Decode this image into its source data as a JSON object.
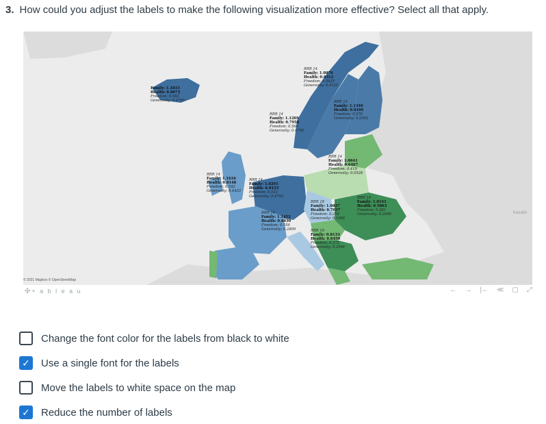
{
  "question": {
    "number": "3.",
    "text": "How could you adjust the labels to make the following visualization more effective? Select all that apply."
  },
  "map": {
    "attribution": "© 2021 Mapbox © OpenStreetMap",
    "logo": "+ a b l e a u",
    "corner_label": "Kazakh",
    "colors": {
      "dark_blue": "#3e6f9e",
      "mid_blue": "#6a9dc9",
      "light_blue": "#a9c9e2",
      "dark_green": "#3e8e57",
      "mid_green": "#73b873",
      "light_green": "#b9dcb0",
      "background": "#ececec"
    },
    "toolbar_icons": [
      "undo-icon",
      "redo-icon",
      "revert-icon",
      "share-icon",
      "comment-icon",
      "fullscreen-icon"
    ],
    "toolbar_glyphs": [
      "←",
      "→",
      "|←",
      "≪",
      "▢",
      "⤢"
    ],
    "labels": [
      {
        "id": "iceland",
        "l0": "",
        "l1": "Family: 1.1833",
        "l2": "Health: 0.8673",
        "l3": "Freedom: 0.562",
        "l4": "Generosity: 0.4765"
      },
      {
        "id": "norway",
        "l0": "RRR 14",
        "l1": "Family: 1.0876",
        "l2": "Health: 0.8312",
        "l3": "Freedom: 0.5625",
        "l4": "Generosity: 0.4125"
      },
      {
        "id": "sweden",
        "l0": "RRR 14",
        "l1": "Family: 1.1269",
        "l2": "Health: 0.7958",
        "l3": "Freedom: 0.566",
        "l4": "Generosity: 0.4750"
      },
      {
        "id": "finland",
        "l0": "RRR 14",
        "l1": "Family: 1.1346",
        "l2": "Health: 0.8109",
        "l3": "Freedom: 0.570",
        "l4": "Generosity: 0.2543"
      },
      {
        "id": "baltic",
        "l0": "RRR 14",
        "l1": "Family: 1.0641",
        "l2": "Health: 0.6467",
        "l3": "Freedom: 0.419",
        "l4": "Generosity: 0.0528"
      },
      {
        "id": "uk",
        "l0": "RRR 14",
        "l1": "Family: 1.1616",
        "l2": "Health: 0.8148",
        "l3": "Freedom: 0.542",
        "l4": "Generosity: 0.4433"
      },
      {
        "id": "benelux",
        "l0": "RRR 14",
        "l1": "Family: 1.0291",
        "l2": "Health: 0.8123",
        "l3": "Freedom: 0.512",
        "l4": "Generosity: 0.4740"
      },
      {
        "id": "poland",
        "l0": "RRR 18",
        "l1": "Family: 1.0827",
        "l2": "Health: 0.7037",
        "l3": "Freedom: 0.259",
        "l4": "Generosity: 0.1684"
      },
      {
        "id": "ukraine",
        "l0": "RRR 14",
        "l1": "Family: 1.0141",
        "l2": "Health: 0.5863",
        "l3": "Freedom: 0.281",
        "l4": "Generosity: 0.2046"
      },
      {
        "id": "france",
        "l0": "RRR 14",
        "l1": "Family: 1.1452",
        "l2": "Health: 0.8630",
        "l3": "Freedom: 0.556",
        "l4": "Generosity: 0.2809"
      },
      {
        "id": "balkans",
        "l0": "RRR 10",
        "l1": "Family: 0.8133",
        "l2": "Health: 0.6450",
        "l3": "Freedom: 0.372",
        "l4": "Generosity: 0.2594"
      }
    ]
  },
  "answers": [
    {
      "id": "font-color",
      "label": "Change the font color for the labels from black to white",
      "checked": false
    },
    {
      "id": "single-font",
      "label": "Use a single font for the labels",
      "checked": true
    },
    {
      "id": "white-space",
      "label": "Move the labels to white space on the map",
      "checked": false
    },
    {
      "id": "reduce-labels",
      "label": "Reduce the number of labels",
      "checked": true
    }
  ]
}
